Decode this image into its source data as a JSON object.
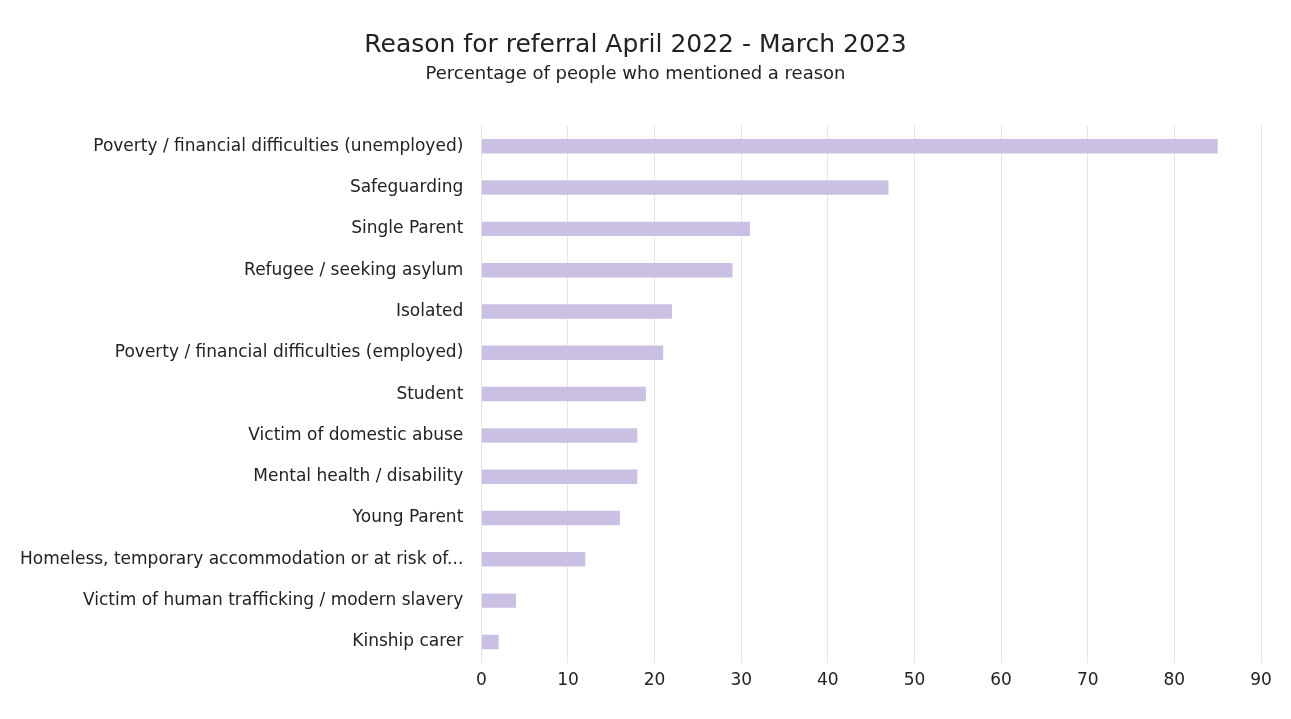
{
  "chart_data": {
    "type": "bar",
    "orientation": "horizontal",
    "title": "Reason for referral April 2022 - March 2023",
    "subtitle": "Percentage of people who mentioned a reason",
    "categories": [
      "Poverty / financial difficulties (unemployed)",
      "Safeguarding",
      "Single Parent",
      "Refugee / seeking asylum",
      "Isolated",
      "Poverty / financial difficulties (employed)",
      "Student",
      "Victim of domestic abuse",
      "Mental health / disability",
      "Young Parent",
      "Homeless, temporary accommodation or at risk of...",
      "Victim of human trafficking / modern slavery",
      "Kinship carer"
    ],
    "values": [
      85,
      47,
      31,
      29,
      22,
      21,
      19,
      18,
      18,
      16,
      12,
      4,
      2
    ],
    "color": "#c9c0e3",
    "xlim": [
      0,
      90
    ],
    "xticks": [
      0,
      10,
      20,
      30,
      40,
      50,
      60,
      70,
      80,
      90
    ],
    "grid": "x",
    "legend": false
  }
}
